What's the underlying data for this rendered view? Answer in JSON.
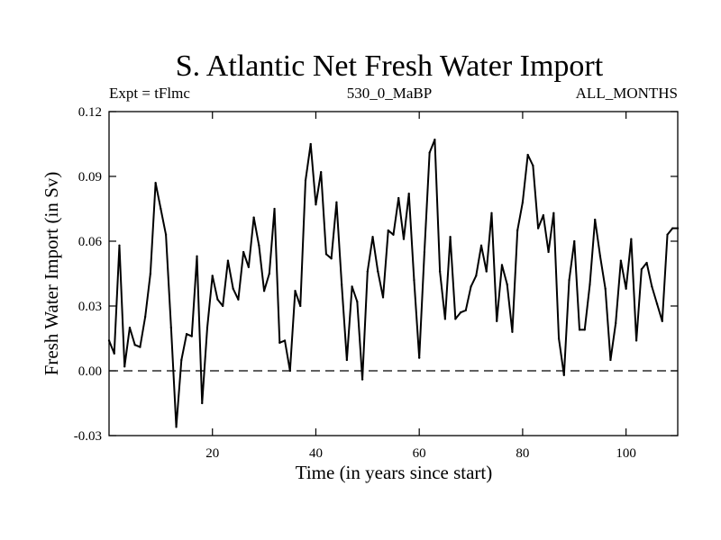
{
  "chart_data": {
    "type": "line",
    "title": "S. Atlantic Net Fresh Water Import",
    "subtitle_left": "Expt = tFlmc",
    "subtitle_center": "530_0_MaBP",
    "subtitle_right": "ALL_MONTHS",
    "xlabel": "Time (in years since start)",
    "ylabel": "Fresh Water Import (in Sv)",
    "xlim": [
      0,
      110
    ],
    "ylim": [
      -0.03,
      0.12
    ],
    "xticks": [
      20,
      40,
      60,
      80,
      100
    ],
    "xtick_labels": [
      "20",
      "40",
      "60",
      "80",
      "100"
    ],
    "yticks": [
      -0.03,
      0.0,
      0.03,
      0.06,
      0.09,
      0.12
    ],
    "ytick_labels": [
      "-0.03",
      "0.00",
      "0.03",
      "0.06",
      "0.09",
      "0.12"
    ],
    "reference_line": 0.0,
    "series": [
      {
        "name": "S. Atlantic Net Fresh Water Import",
        "x": [
          0,
          1,
          2,
          3,
          4,
          5,
          6,
          7,
          8,
          9,
          10,
          11,
          12,
          13,
          14,
          15,
          16,
          17,
          18,
          19,
          20,
          21,
          22,
          23,
          24,
          25,
          26,
          27,
          28,
          29,
          30,
          31,
          32,
          33,
          34,
          35,
          36,
          37,
          38,
          39,
          40,
          41,
          42,
          43,
          44,
          45,
          46,
          47,
          48,
          49,
          50,
          51,
          52,
          53,
          54,
          55,
          56,
          57,
          58,
          59,
          60,
          61,
          62,
          63,
          64,
          65,
          66,
          67,
          68,
          69,
          70,
          71,
          72,
          73,
          74,
          75,
          76,
          77,
          78,
          79,
          80,
          81,
          82,
          83,
          84,
          85,
          86,
          87,
          88,
          89,
          90,
          91,
          92,
          93,
          94,
          95,
          96,
          97,
          98,
          99,
          100,
          101,
          102,
          103,
          104,
          105,
          106,
          107,
          108,
          109,
          110
        ],
        "values": [
          0.014,
          0.008,
          0.058,
          0.002,
          0.02,
          0.012,
          0.011,
          0.025,
          0.045,
          0.087,
          0.075,
          0.063,
          0.02,
          -0.026,
          0.005,
          0.017,
          0.016,
          0.053,
          -0.015,
          0.02,
          0.044,
          0.033,
          0.03,
          0.051,
          0.038,
          0.033,
          0.055,
          0.048,
          0.071,
          0.058,
          0.037,
          0.045,
          0.075,
          0.013,
          0.014,
          0.0,
          0.037,
          0.03,
          0.088,
          0.105,
          0.077,
          0.092,
          0.054,
          0.052,
          0.078,
          0.04,
          0.005,
          0.039,
          0.032,
          -0.004,
          0.046,
          0.062,
          0.046,
          0.034,
          0.065,
          0.063,
          0.08,
          0.061,
          0.082,
          0.042,
          0.006,
          0.055,
          0.101,
          0.107,
          0.046,
          0.024,
          0.062,
          0.024,
          0.027,
          0.028,
          0.039,
          0.044,
          0.058,
          0.046,
          0.073,
          0.023,
          0.049,
          0.04,
          0.018,
          0.065,
          0.078,
          0.1,
          0.095,
          0.066,
          0.072,
          0.055,
          0.073,
          0.015,
          -0.002,
          0.042,
          0.06,
          0.019,
          0.019,
          0.04,
          0.07,
          0.053,
          0.038,
          0.005,
          0.022,
          0.051,
          0.038,
          0.061,
          0.014,
          0.047,
          0.05,
          0.039,
          0.031,
          0.023,
          0.063,
          0.066,
          0.066
        ]
      }
    ]
  }
}
